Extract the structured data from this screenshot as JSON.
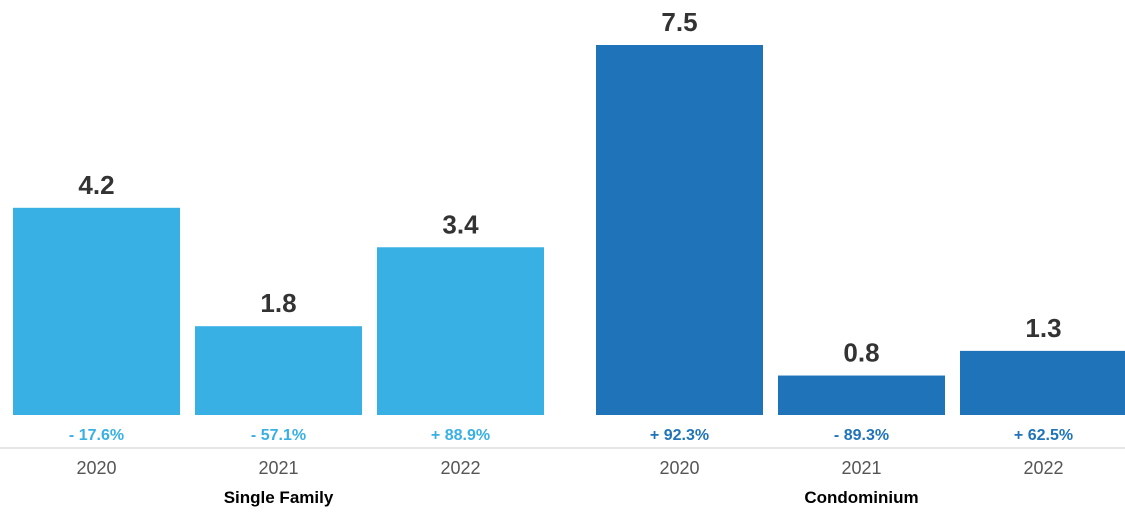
{
  "chart_data": {
    "type": "bar",
    "groups": [
      {
        "name": "Single Family",
        "color": "#38b0e4",
        "categories": [
          "2020",
          "2021",
          "2022"
        ],
        "values": [
          4.2,
          1.8,
          3.4
        ],
        "value_labels": [
          "4.2",
          "1.8",
          "3.4"
        ],
        "changes": [
          "- 17.6%",
          "- 57.1%",
          "+ 88.9%"
        ]
      },
      {
        "name": "Condominium",
        "color": "#1f74b9",
        "categories": [
          "2020",
          "2021",
          "2022"
        ],
        "values": [
          7.5,
          0.8,
          1.3
        ],
        "value_labels": [
          "7.5",
          "0.8",
          "1.3"
        ],
        "changes": [
          "+ 92.3%",
          "- 89.3%",
          "+ 62.5%"
        ]
      }
    ],
    "ylim": [
      0,
      7.5
    ],
    "grid": false,
    "legend": "none"
  }
}
